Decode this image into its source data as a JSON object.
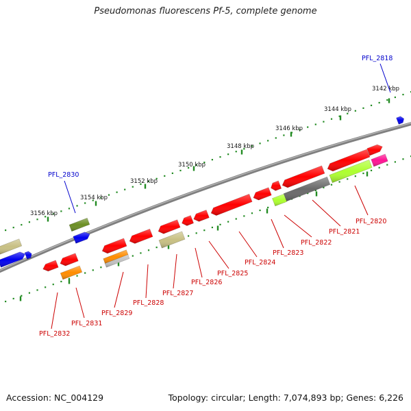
{
  "title": "Pseudomonas fluorescens Pf-5, complete genome",
  "footer": {
    "accession": "Accession: NC_004129",
    "summary": "Topology: circular; Length: 7,074,893 bp; Genes: 6,226"
  },
  "colors": {
    "backbone": "#808080",
    "gene_red": "#ff0000",
    "gene_blue": "#0000ee",
    "gene_olive": "#6b8e23",
    "gene_khaki": "#c8c083",
    "gene_orange": "#ff8c00",
    "gene_gray": "#696969",
    "gene_lime": "#adff2f",
    "gene_pink": "#ff1493",
    "gene_lightgray": "#c0c0c0",
    "tick": "#228b22",
    "label_blue": "#0000cc",
    "label_red": "#cc0000"
  },
  "ticks": [
    {
      "label": "3142 kbp"
    },
    {
      "label": "3144 kbp"
    },
    {
      "label": "3146 kbp"
    },
    {
      "label": "3148 kbp"
    },
    {
      "label": "3150 kbp"
    },
    {
      "label": "3152 kbp"
    },
    {
      "label": "3154 kbp"
    },
    {
      "label": "3156 kbp"
    }
  ],
  "labels_blue": [
    {
      "text": "PFL_2818"
    },
    {
      "text": "PFL_2830"
    }
  ],
  "labels_red": [
    {
      "text": "PFL_2820"
    },
    {
      "text": "PFL_2821"
    },
    {
      "text": "PFL_2822"
    },
    {
      "text": "PFL_2823"
    },
    {
      "text": "PFL_2824"
    },
    {
      "text": "PFL_2825"
    },
    {
      "text": "PFL_2826"
    },
    {
      "text": "PFL_2827"
    },
    {
      "text": "PFL_2828"
    },
    {
      "text": "PFL_2829"
    },
    {
      "text": "PFL_2831"
    },
    {
      "text": "PFL_2832"
    }
  ]
}
